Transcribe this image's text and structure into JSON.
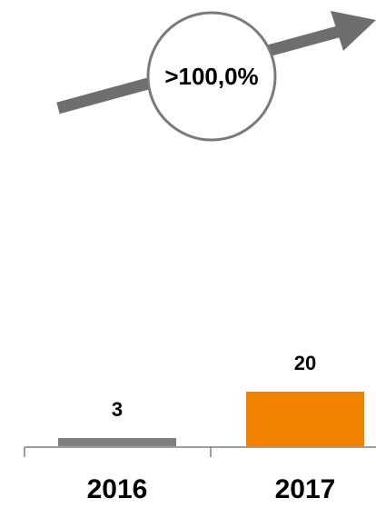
{
  "chart_data": {
    "type": "bar",
    "categories": [
      "2016",
      "2017"
    ],
    "values": [
      3,
      20
    ],
    "data_labels": [
      "3",
      "20"
    ],
    "bar_colors": [
      "#7f7f7f",
      "#f08200"
    ],
    "annotation": {
      "text": ">100,0%",
      "arrow_color": "#6e6e6e",
      "circle_color": "#7a7a7a"
    },
    "axis_color": "#7f7f7f",
    "title": "",
    "xlabel": "",
    "ylabel": "",
    "ylim": [
      0,
      20
    ],
    "grid": false,
    "legend": "none"
  }
}
